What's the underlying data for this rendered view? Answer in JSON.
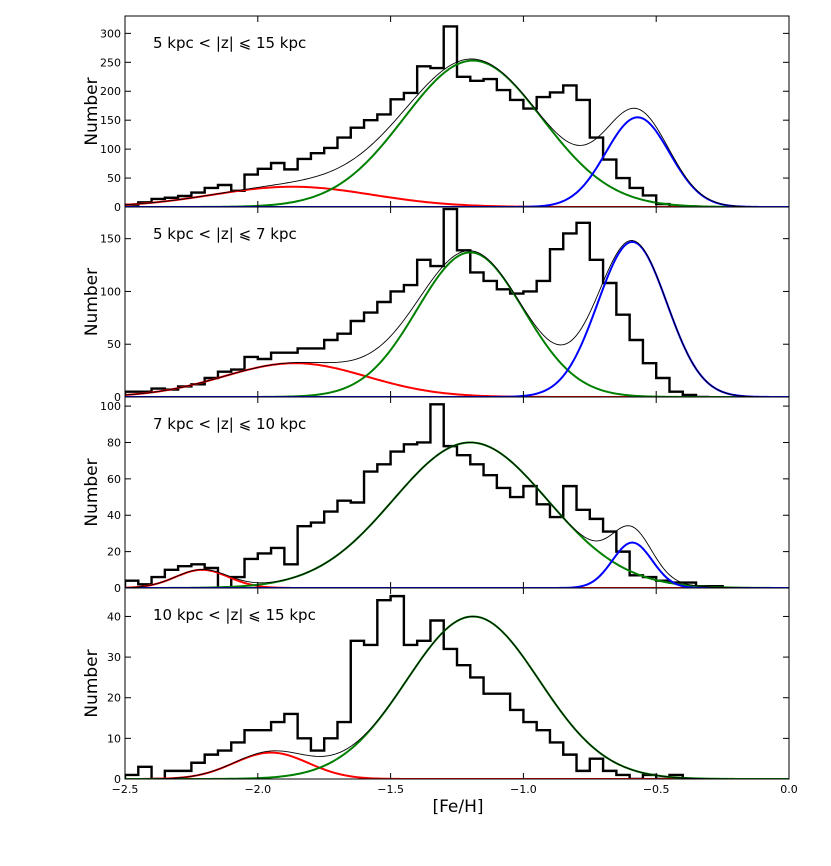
{
  "chart_data": {
    "type": "histogram-multipanel",
    "shared_xlabel": "[Fe/H]",
    "xlim": [
      -2.5,
      0.0
    ],
    "x_ticks": [
      -2.5,
      -2.0,
      -1.5,
      -1.0,
      -0.5,
      0.0
    ],
    "x_tick_labels": [
      "−2.5",
      "−2.0",
      "−1.5",
      "−1.0",
      "−0.5",
      "0.0"
    ],
    "colors": {
      "histogram": "#000000",
      "total_fit": "#000000",
      "component_metal_poor": "#ff0000",
      "component_halo": "#008000",
      "component_disk": "#0000ff"
    },
    "panels": [
      {
        "label": "5 kpc < |z| ⩽ 15 kpc",
        "ylabel": "Number",
        "ylim": [
          0,
          330
        ],
        "y_ticks": [
          0,
          50,
          100,
          150,
          200,
          250,
          300
        ],
        "bin_edges_start": -2.5,
        "bin_width": 0.05,
        "histogram": [
          4,
          8,
          14,
          16,
          19,
          25,
          33,
          38,
          28,
          56,
          66,
          76,
          65,
          83,
          93,
          102,
          120,
          137,
          150,
          160,
          186,
          197,
          243,
          240,
          312,
          225,
          218,
          221,
          202,
          185,
          170,
          190,
          198,
          210,
          185,
          120,
          82,
          50,
          33,
          20,
          5,
          0,
          1
        ],
        "components": [
          {
            "name": "red",
            "mu": -1.87,
            "sigma": 0.3,
            "amp": 35
          },
          {
            "name": "green",
            "mu": -1.19,
            "sigma": 0.26,
            "amp": 253
          },
          {
            "name": "blue",
            "mu": -0.57,
            "sigma": 0.12,
            "amp": 155
          }
        ]
      },
      {
        "label": "5 kpc < |z| ⩽ 7 kpc",
        "ylabel": "Number",
        "ylim": [
          0,
          180
        ],
        "y_ticks": [
          0,
          50,
          100,
          150
        ],
        "bin_edges_start": -2.5,
        "bin_width": 0.05,
        "histogram": [
          5,
          5,
          8,
          7,
          10,
          12,
          18,
          24,
          26,
          38,
          36,
          42,
          42,
          46,
          46,
          54,
          60,
          72,
          80,
          90,
          100,
          106,
          130,
          124,
          178,
          139,
          118,
          110,
          102,
          98,
          100,
          110,
          140,
          155,
          165,
          130,
          108,
          78,
          54,
          32,
          18,
          5,
          2,
          0
        ],
        "components": [
          {
            "name": "red",
            "mu": -1.86,
            "sigma": 0.27,
            "amp": 32
          },
          {
            "name": "green",
            "mu": -1.2,
            "sigma": 0.2,
            "amp": 137
          },
          {
            "name": "blue",
            "mu": -0.59,
            "sigma": 0.13,
            "amp": 147
          }
        ]
      },
      {
        "label": "7 kpc < |z| ⩽ 10 kpc",
        "ylabel": "Number",
        "ylim": [
          0,
          105
        ],
        "y_ticks": [
          0,
          20,
          40,
          60,
          80,
          100
        ],
        "bin_edges_start": -2.5,
        "bin_width": 0.05,
        "histogram": [
          4,
          2,
          6,
          10,
          12,
          13,
          11,
          0,
          6,
          16,
          19,
          22,
          13,
          34,
          36,
          42,
          48,
          47,
          64,
          68,
          75,
          79,
          80,
          101,
          78,
          73,
          68,
          62,
          55,
          50,
          56,
          46,
          39,
          56,
          43,
          38,
          31,
          20,
          7,
          6,
          4,
          3,
          3,
          1,
          1
        ],
        "components": [
          {
            "name": "red",
            "mu": -2.21,
            "sigma": 0.1,
            "amp": 10
          },
          {
            "name": "green",
            "mu": -1.2,
            "sigma": 0.29,
            "amp": 80
          },
          {
            "name": "blue",
            "mu": -0.59,
            "sigma": 0.075,
            "amp": 25
          }
        ]
      },
      {
        "label": "10 kpc < |z| ⩽ 15 kpc",
        "ylabel": "Number",
        "ylim": [
          0,
          47
        ],
        "y_ticks": [
          0,
          10,
          20,
          30,
          40
        ],
        "bin_edges_start": -2.5,
        "bin_width": 0.05,
        "histogram": [
          1,
          3,
          0,
          2,
          2,
          4,
          6,
          7,
          9,
          12,
          12,
          14,
          16,
          10,
          7,
          10,
          14,
          34,
          33,
          44,
          45,
          33,
          34,
          39,
          32,
          28,
          25,
          21,
          21,
          17,
          14,
          12,
          9,
          6,
          2,
          5,
          2,
          1,
          0,
          1,
          0,
          1,
          0
        ],
        "components": [
          {
            "name": "red",
            "mu": -1.95,
            "sigma": 0.14,
            "amp": 6.5
          },
          {
            "name": "green",
            "mu": -1.19,
            "sigma": 0.25,
            "amp": 40
          }
        ]
      }
    ]
  }
}
